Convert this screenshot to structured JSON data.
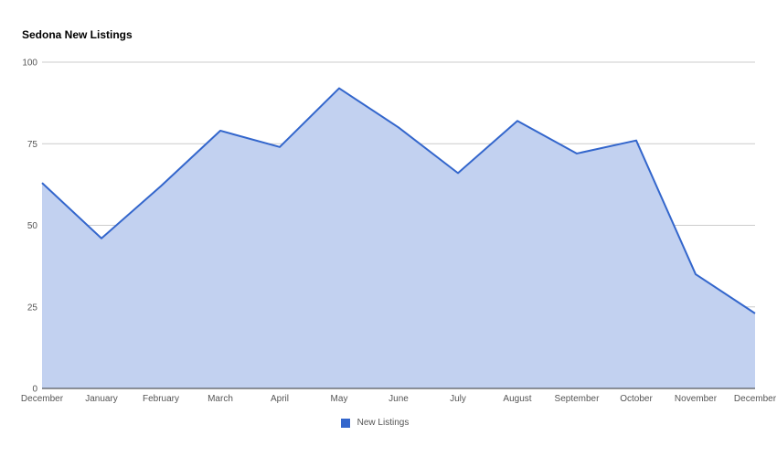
{
  "chart_data": {
    "type": "area",
    "title": "Sedona New Listings",
    "xlabel": "",
    "ylabel": "",
    "categories": [
      "December",
      "January",
      "February",
      "March",
      "April",
      "May",
      "June",
      "July",
      "August",
      "September",
      "October",
      "November",
      "December"
    ],
    "series": [
      {
        "name": "New Listings",
        "values": [
          63,
          46,
          62,
          79,
          74,
          92,
          80,
          66,
          82,
          72,
          76,
          35,
          23
        ]
      }
    ],
    "ylim": [
      0,
      100
    ],
    "yticks": [
      0,
      25,
      50,
      75,
      100
    ],
    "grid": true,
    "legend": "bottom",
    "colors": {
      "line": "#3366cc",
      "fill": "#c2d1f0",
      "grid": "#cccccc",
      "baseline": "#333333"
    }
  }
}
